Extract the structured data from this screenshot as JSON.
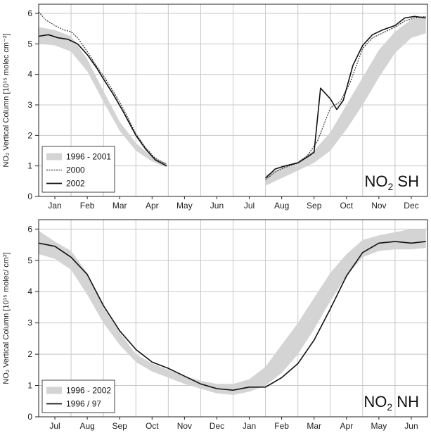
{
  "chart_data": [
    {
      "type": "line",
      "ylabel": "NO₂ Vertical Column [10¹⁵ molec cm⁻²]",
      "ylim": [
        0,
        6.3
      ],
      "yticks": [
        "0",
        "1",
        "2",
        "3",
        "4",
        "5",
        "6"
      ],
      "categories": [
        "Jan",
        "Feb",
        "Mar",
        "Apr",
        "May",
        "Jun",
        "Jul",
        "Aug",
        "Sep",
        "Oct",
        "Nov",
        "Dec"
      ],
      "panel_label": {
        "main": "NO",
        "sub": "2",
        "tail": " SH"
      },
      "grid": true,
      "legend_position": "bottom-left",
      "legend": [
        {
          "label": "1996 - 2001",
          "style": "band",
          "color": "#d4d4d4"
        },
        {
          "label": "2000",
          "style": "dotted",
          "color": "#333333"
        },
        {
          "label": "2002",
          "style": "solid",
          "color": "#111111"
        }
      ],
      "series": [
        {
          "name": "1996 - 2001",
          "kind": "band",
          "segments": [
            {
              "x": [
                0,
                0.5,
                1.0,
                1.5,
                2.0,
                2.5,
                3.0,
                3.5,
                3.95
              ],
              "low": [
                5.0,
                4.95,
                4.75,
                4.1,
                3.1,
                2.15,
                1.5,
                1.15,
                0.95
              ],
              "high": [
                5.55,
                5.45,
                5.25,
                4.5,
                3.45,
                2.45,
                1.75,
                1.3,
                1.1
              ]
            },
            {
              "x": [
                7.0,
                7.5,
                8.0,
                8.5,
                9.0,
                9.5,
                10.0,
                10.5,
                11.0,
                11.5,
                11.95
              ],
              "low": [
                0.35,
                0.6,
                0.85,
                1.1,
                1.5,
                2.2,
                3.0,
                3.9,
                4.7,
                5.2,
                5.35
              ],
              "high": [
                0.7,
                0.95,
                1.15,
                1.5,
                2.1,
                3.0,
                3.9,
                4.8,
                5.4,
                5.8,
                5.9
              ]
            }
          ]
        },
        {
          "name": "2000",
          "kind": "dotted",
          "segments": [
            {
              "x": [
                0,
                0.2,
                0.5,
                0.8,
                1.0,
                1.2,
                1.5,
                1.8,
                2.0,
                2.3,
                2.6,
                3.0,
                3.3,
                3.6,
                3.95
              ],
              "y": [
                6.05,
                5.8,
                5.6,
                5.45,
                5.4,
                5.2,
                4.75,
                4.25,
                3.95,
                3.45,
                2.9,
                2.05,
                1.6,
                1.25,
                1.05
              ]
            },
            {
              "x": [
                7.0,
                7.3,
                7.6,
                8.0,
                8.3,
                8.6,
                9.0,
                9.3,
                9.6,
                10.0,
                10.3,
                10.6,
                11.0,
                11.3,
                11.6,
                11.95
              ],
              "y": [
                0.55,
                0.8,
                0.95,
                1.1,
                1.35,
                1.8,
                2.9,
                3.1,
                3.7,
                4.85,
                5.2,
                5.35,
                5.55,
                5.75,
                5.85,
                5.9
              ]
            }
          ]
        },
        {
          "name": "2002",
          "kind": "solid",
          "segments": [
            {
              "x": [
                0,
                0.3,
                0.6,
                0.9,
                1.0,
                1.2,
                1.5,
                1.8,
                2.0,
                2.3,
                2.6,
                3.0,
                3.3,
                3.6,
                3.95
              ],
              "y": [
                5.25,
                5.3,
                5.2,
                5.15,
                5.1,
                5.0,
                4.65,
                4.2,
                3.85,
                3.35,
                2.8,
                2.0,
                1.55,
                1.2,
                1.0
              ]
            },
            {
              "x": [
                7.0,
                7.3,
                7.6,
                8.0,
                8.3,
                8.5,
                8.7,
                9.0,
                9.2,
                9.4,
                9.7,
                10.0,
                10.3,
                10.6,
                11.0,
                11.3,
                11.6,
                11.95
              ],
              "y": [
                0.6,
                0.9,
                1.0,
                1.1,
                1.3,
                1.45,
                3.55,
                3.2,
                2.85,
                3.15,
                4.3,
                4.95,
                5.3,
                5.45,
                5.6,
                5.85,
                5.9,
                5.85
              ]
            }
          ]
        }
      ]
    },
    {
      "type": "line",
      "ylabel": "NO₂ Vertical Column [10¹⁵ molec/ cm²]",
      "ylim": [
        0,
        6.3
      ],
      "yticks": [
        "0",
        "1",
        "2",
        "3",
        "4",
        "5",
        "6"
      ],
      "categories": [
        "Jul",
        "Aug",
        "Sep",
        "Oct",
        "Nov",
        "Dec",
        "Jan",
        "Feb",
        "Mar",
        "Apr",
        "May",
        "Jun"
      ],
      "panel_label": {
        "main": "NO",
        "sub": "2",
        "tail": " NH"
      },
      "grid": true,
      "legend_position": "bottom-left",
      "legend": [
        {
          "label": "1996 - 2002",
          "style": "band",
          "color": "#d4d4d4"
        },
        {
          "label": "1996 / 97",
          "style": "solid",
          "color": "#111111"
        }
      ],
      "series": [
        {
          "name": "1996 - 2002",
          "kind": "band",
          "segments": [
            {
              "x": [
                0,
                0.5,
                1.0,
                1.5,
                2.0,
                2.5,
                3.0,
                3.5,
                4.0,
                4.5,
                5.0,
                5.5,
                6.0,
                6.5,
                7.0,
                7.5,
                8.0,
                8.5,
                9.0,
                9.5,
                10.0,
                10.5,
                11.0,
                11.5,
                11.95
              ],
              "low": [
                5.2,
                5.05,
                4.7,
                3.9,
                3.0,
                2.3,
                1.75,
                1.45,
                1.25,
                1.05,
                0.9,
                0.75,
                0.7,
                0.8,
                1.0,
                1.4,
                2.0,
                2.8,
                3.7,
                4.5,
                5.1,
                5.3,
                5.35,
                5.35,
                5.4
              ],
              "high": [
                5.95,
                5.6,
                5.3,
                4.6,
                3.5,
                2.7,
                2.0,
                1.7,
                1.5,
                1.3,
                1.15,
                1.05,
                1.05,
                1.2,
                1.6,
                2.3,
                3.0,
                3.8,
                4.6,
                5.2,
                5.65,
                5.8,
                5.9,
                6.0,
                6.0
              ]
            }
          ]
        },
        {
          "name": "1996 / 97",
          "kind": "solid",
          "segments": [
            {
              "x": [
                0,
                0.5,
                1.0,
                1.5,
                2.0,
                2.5,
                3.0,
                3.5,
                4.0,
                4.5,
                5.0,
                5.5,
                6.0,
                6.5,
                7.0,
                7.5,
                8.0,
                8.5,
                9.0,
                9.5,
                10.0,
                10.5,
                11.0,
                11.5,
                11.95
              ],
              "y": [
                5.55,
                5.45,
                5.1,
                4.55,
                3.55,
                2.75,
                2.15,
                1.75,
                1.55,
                1.3,
                1.05,
                0.9,
                0.85,
                0.95,
                0.95,
                1.25,
                1.7,
                2.45,
                3.45,
                4.5,
                5.25,
                5.55,
                5.6,
                5.55,
                5.6
              ]
            }
          ]
        }
      ]
    }
  ]
}
